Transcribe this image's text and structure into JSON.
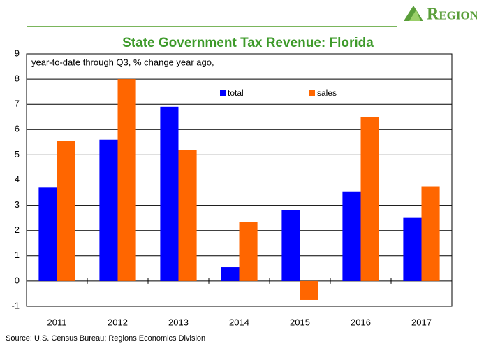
{
  "chart_data": {
    "type": "bar",
    "brand": "Regions",
    "title": "State Government Tax Revenue: Florida",
    "annotation": "year-to-date through Q3, % change year ago,",
    "source": "Source: U.S. Census Bureau; Regions Economics Division",
    "categories": [
      "2011",
      "2012",
      "2013",
      "2014",
      "2015",
      "2016",
      "2017"
    ],
    "series": [
      {
        "name": "total",
        "color": "#0000ff",
        "values": [
          3.7,
          5.6,
          6.9,
          0.55,
          2.8,
          3.55,
          2.5
        ]
      },
      {
        "name": "sales",
        "color": "#ff6600",
        "values": [
          5.55,
          8.0,
          5.2,
          2.33,
          -0.75,
          6.48,
          3.75
        ]
      }
    ],
    "ylim": [
      -1,
      9
    ],
    "yticks": [
      -1,
      0,
      1,
      2,
      3,
      4,
      5,
      6,
      7,
      8,
      9
    ],
    "grid": true
  }
}
